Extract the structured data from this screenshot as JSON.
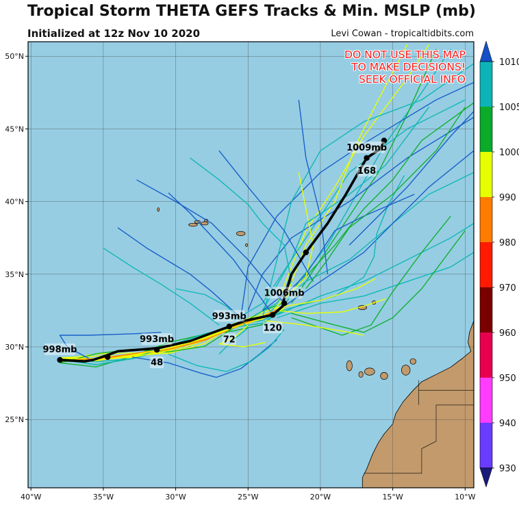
{
  "header": {
    "title": "Tropical Storm THETA GEFS Tracks & Min. MSLP (mb)",
    "subtitle": "Initialized at 12z Nov 10 2020",
    "credit": "Levi Cowan - tropicaltidbits.com"
  },
  "warning": [
    "DO NOT USE THIS MAP",
    "TO MAKE DECISIONS!",
    "SEEK OFFICIAL INFO"
  ],
  "map": {
    "lon_range": [
      -40.2,
      -9.4
    ],
    "lat_range": [
      20.3,
      51.0
    ],
    "lon_ticks": [
      {
        "v": -40,
        "label": "40°W"
      },
      {
        "v": -35,
        "label": "35°W"
      },
      {
        "v": -30,
        "label": "30°W"
      },
      {
        "v": -25,
        "label": "25°W"
      },
      {
        "v": -20,
        "label": "20°W"
      },
      {
        "v": -15,
        "label": "15°W"
      },
      {
        "v": -10,
        "label": "10°W"
      }
    ],
    "lat_ticks": [
      {
        "v": 25,
        "label": "25°N"
      },
      {
        "v": 30,
        "label": "30°N"
      },
      {
        "v": 35,
        "label": "35°N"
      },
      {
        "v": 40,
        "label": "40°N"
      },
      {
        "v": 45,
        "label": "45°N"
      },
      {
        "v": 50,
        "label": "50°N"
      }
    ],
    "ocean_color": "#96cde3",
    "land_color": "#c29a6c",
    "grid": true
  },
  "colorbar": {
    "labels": [
      "1010",
      "1005",
      "1000",
      "990",
      "980",
      "970",
      "960",
      "950",
      "940",
      "930"
    ],
    "bins": [
      "#0cb4b8",
      "#0aaa2a",
      "#e6ff00",
      "#ff7c00",
      "#ff1a00",
      "#7a0000",
      "#e8004e",
      "#ff3cff",
      "#6a3cff"
    ],
    "top_arrow": "#1450c8",
    "bottom_arrow": "#1a1a7a"
  },
  "mean_track": {
    "points": [
      [
        -38.0,
        29.1
      ],
      [
        -36.3,
        29.0
      ],
      [
        -35.7,
        29.1
      ],
      [
        -34.8,
        29.4
      ],
      [
        -34.0,
        29.7
      ],
      [
        -31.3,
        29.9
      ],
      [
        -29.0,
        30.4
      ],
      [
        -26.3,
        31.4
      ],
      [
        -25.2,
        31.8
      ],
      [
        -23.3,
        32.2
      ],
      [
        -22.6,
        32.8
      ],
      [
        -22.5,
        33.4
      ],
      [
        -22.0,
        35.0
      ],
      [
        -21.0,
        36.5
      ],
      [
        -19.5,
        38.5
      ],
      [
        -18.3,
        40.4
      ],
      [
        -16.8,
        43.0
      ],
      [
        -15.9,
        43.6
      ],
      [
        -15.6,
        44.1
      ]
    ],
    "dots": [
      [
        -38.0,
        29.1
      ],
      [
        -34.7,
        29.3
      ],
      [
        -31.3,
        29.8
      ],
      [
        -26.3,
        31.4
      ],
      [
        -23.3,
        32.2
      ],
      [
        -22.5,
        33.0
      ],
      [
        -21.0,
        36.5
      ],
      [
        -16.8,
        43.0
      ],
      [
        -15.6,
        44.2
      ]
    ]
  },
  "pressure_labels": [
    {
      "text": "998mb",
      "lon": -38.0,
      "lat": 29.1
    },
    {
      "text": "993mb",
      "lon": -31.3,
      "lat": 29.8
    },
    {
      "text": "993mb",
      "lon": -26.3,
      "lat": 31.4
    },
    {
      "text": "1006mb",
      "lon": -22.5,
      "lat": 33.0
    },
    {
      "text": "1009mb",
      "lon": -16.8,
      "lat": 43.0
    }
  ],
  "hour_labels": [
    {
      "text": "48",
      "lon": -31.3,
      "lat": 29.8
    },
    {
      "text": "72",
      "lon": -26.3,
      "lat": 31.4
    },
    {
      "text": "120",
      "lon": -23.3,
      "lat": 32.2
    },
    {
      "text": "168",
      "lon": -16.8,
      "lat": 43.0
    }
  ]
}
